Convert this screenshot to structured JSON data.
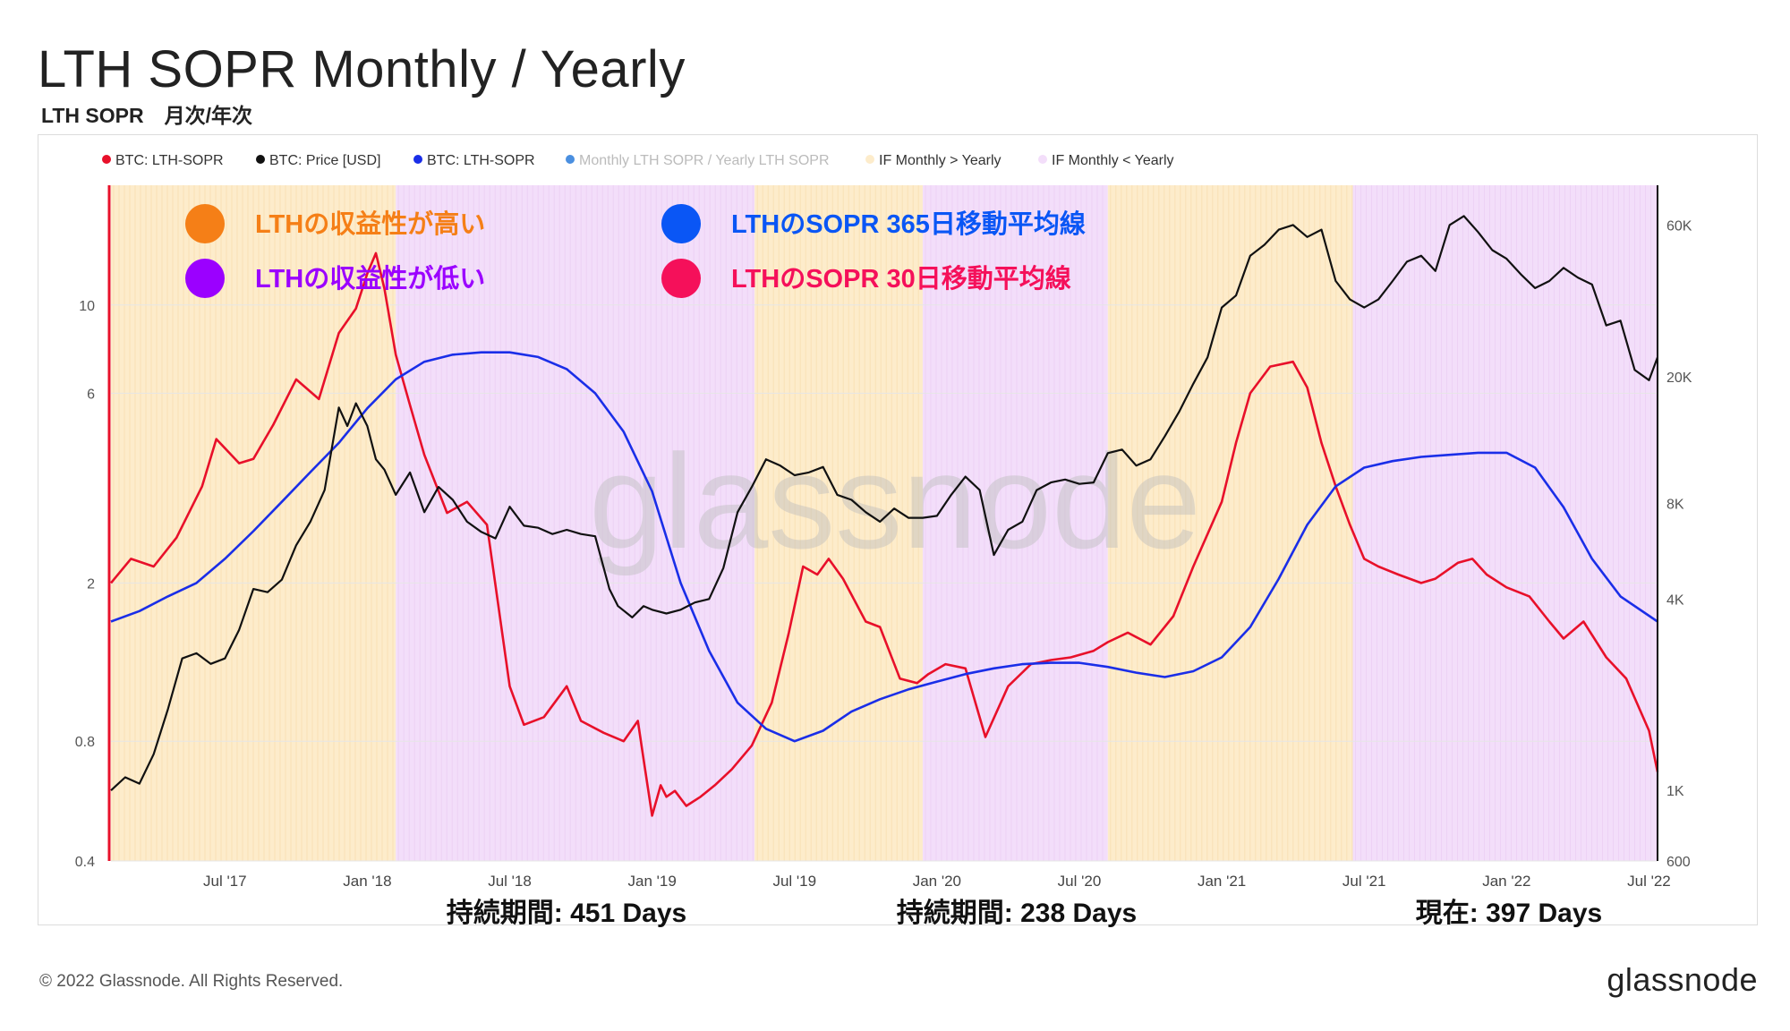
{
  "header": {
    "title": "LTH SOPR Monthly / Yearly",
    "subtitle": "LTH SOPR　月次/年次"
  },
  "footer": {
    "copyright": "© 2022 Glassnode. All Rights Reserved.",
    "brand": "glassnode"
  },
  "colors": {
    "red": "#e8102a",
    "black": "#111111",
    "blue": "#1a2ee8",
    "light_blue": "#4a8fe0",
    "band_high": "#fdeccb",
    "band_low": "#f3defa",
    "ann_orange": "#f57f17",
    "ann_purple": "#9b00ff",
    "ann_blue": "#0a56f5",
    "ann_pink": "#f5105a"
  },
  "chart_data": {
    "type": "line",
    "legend": [
      {
        "label": "BTC: LTH-SOPR",
        "color": "#e8102a"
      },
      {
        "label": "BTC: Price [USD]",
        "color": "#111111"
      },
      {
        "label": "BTC: LTH-SOPR",
        "color": "#1a2ee8"
      },
      {
        "label": "Monthly LTH SOPR / Yearly LTH SOPR",
        "color": "#4a8fe0",
        "muted": true
      },
      {
        "label": "IF Monthly > Yearly",
        "color": "#fdeccb"
      },
      {
        "label": "IF Monthly < Yearly",
        "color": "#f3defa"
      }
    ],
    "annotations": [
      {
        "label": "LTHの収益性が高い",
        "color": "#f57f17"
      },
      {
        "label": "LTHの収益性が低い",
        "color": "#9b00ff"
      },
      {
        "label": "LTHのSOPR 365日移動平均線",
        "color": "#0a56f5"
      },
      {
        "label": "LTHのSOPR 30日移動平均線",
        "color": "#f5105a"
      }
    ],
    "durations": [
      "持続期間: 451 Days",
      "持続期間: 238 Days",
      "現在: 397 Days"
    ],
    "x_ticks": [
      "Jul '17",
      "Jan '18",
      "Jul '18",
      "Jan '19",
      "Jul '19",
      "Jan '20",
      "Jul '20",
      "Jan '21",
      "Jul '21",
      "Jan '22",
      "Jul '22"
    ],
    "x_tick_dates": [
      2017.5,
      2018.0,
      2018.5,
      2019.0,
      2019.5,
      2020.0,
      2020.5,
      2021.0,
      2021.5,
      2022.0,
      2022.5
    ],
    "x_range": [
      2017.1,
      2022.53
    ],
    "y_left": {
      "label": "",
      "scale": "log",
      "ticks": [
        0.4,
        0.8,
        2,
        6,
        10
      ],
      "tick_labels": [
        "0.4",
        "0.8",
        "2",
        "6",
        "10"
      ],
      "range": [
        0.4,
        20
      ]
    },
    "y_right": {
      "label": "",
      "scale": "log",
      "ticks": [
        600,
        1000,
        4000,
        8000,
        20000,
        60000
      ],
      "tick_labels": [
        "600",
        "1K",
        "4K",
        "8K",
        "20K",
        "60K"
      ],
      "range": [
        600,
        80000
      ]
    },
    "bands": [
      {
        "start": 2017.1,
        "end": 2018.1,
        "state": "IF Monthly > Yearly"
      },
      {
        "start": 2018.1,
        "end": 2019.36,
        "state": "IF Monthly < Yearly"
      },
      {
        "start": 2019.36,
        "end": 2019.95,
        "state": "IF Monthly > Yearly"
      },
      {
        "start": 2019.95,
        "end": 2020.6,
        "state": "IF Monthly < Yearly"
      },
      {
        "start": 2020.6,
        "end": 2021.46,
        "state": "IF Monthly > Yearly"
      },
      {
        "start": 2021.46,
        "end": 2022.53,
        "state": "IF Monthly < Yearly"
      }
    ],
    "series": [
      {
        "name": "BTC: LTH-SOPR",
        "axis": "left",
        "color": "#e8102a",
        "x": [
          2017.1,
          2017.17,
          2017.25,
          2017.33,
          2017.42,
          2017.47,
          2017.55,
          2017.6,
          2017.67,
          2017.75,
          2017.83,
          2017.9,
          2017.96,
          2018.0,
          2018.03,
          2018.06,
          2018.1,
          2018.15,
          2018.2,
          2018.28,
          2018.35,
          2018.42,
          2018.5,
          2018.55,
          2018.62,
          2018.7,
          2018.75,
          2018.83,
          2018.9,
          2018.95,
          2018.97,
          2019.0,
          2019.03,
          2019.05,
          2019.08,
          2019.12,
          2019.17,
          2019.22,
          2019.28,
          2019.35,
          2019.42,
          2019.48,
          2019.53,
          2019.58,
          2019.62,
          2019.67,
          2019.75,
          2019.8,
          2019.87,
          2019.93,
          2019.97,
          2020.03,
          2020.1,
          2020.17,
          2020.25,
          2020.33,
          2020.4,
          2020.47,
          2020.55,
          2020.6,
          2020.67,
          2020.75,
          2020.83,
          2020.9,
          2021.0,
          2021.05,
          2021.1,
          2021.17,
          2021.25,
          2021.3,
          2021.35,
          2021.4,
          2021.45,
          2021.5,
          2021.55,
          2021.62,
          2021.7,
          2021.75,
          2021.83,
          2021.88,
          2021.93,
          2022.0,
          2022.08,
          2022.15,
          2022.2,
          2022.27,
          2022.35,
          2022.42,
          2022.5,
          2022.53
        ],
        "y": [
          2.0,
          2.3,
          2.2,
          2.6,
          3.5,
          4.6,
          4.0,
          4.1,
          5.0,
          6.5,
          5.8,
          8.5,
          9.8,
          12.0,
          13.5,
          11.0,
          7.5,
          5.6,
          4.2,
          3.0,
          3.2,
          2.8,
          1.1,
          0.88,
          0.92,
          1.1,
          0.9,
          0.84,
          0.8,
          0.9,
          0.72,
          0.52,
          0.62,
          0.58,
          0.6,
          0.55,
          0.58,
          0.62,
          0.68,
          0.78,
          1.0,
          1.5,
          2.2,
          2.1,
          2.3,
          2.05,
          1.6,
          1.55,
          1.15,
          1.12,
          1.18,
          1.25,
          1.22,
          0.82,
          1.1,
          1.25,
          1.28,
          1.3,
          1.35,
          1.42,
          1.5,
          1.4,
          1.65,
          2.2,
          3.2,
          4.5,
          6.0,
          7.0,
          7.2,
          6.2,
          4.5,
          3.5,
          2.8,
          2.3,
          2.2,
          2.1,
          2.0,
          2.05,
          2.25,
          2.3,
          2.1,
          1.95,
          1.85,
          1.6,
          1.45,
          1.6,
          1.3,
          1.15,
          0.85,
          0.67
        ]
      },
      {
        "name": "BTC: Price [USD]",
        "axis": "right",
        "color": "#111111",
        "x": [
          2017.1,
          2017.15,
          2017.2,
          2017.25,
          2017.3,
          2017.35,
          2017.4,
          2017.45,
          2017.5,
          2017.55,
          2017.6,
          2017.65,
          2017.7,
          2017.75,
          2017.8,
          2017.85,
          2017.9,
          2017.93,
          2017.96,
          2018.0,
          2018.03,
          2018.06,
          2018.1,
          2018.15,
          2018.2,
          2018.25,
          2018.3,
          2018.35,
          2018.4,
          2018.45,
          2018.5,
          2018.55,
          2018.6,
          2018.65,
          2018.7,
          2018.75,
          2018.8,
          2018.85,
          2018.88,
          2018.93,
          2018.97,
          2019.0,
          2019.05,
          2019.1,
          2019.15,
          2019.2,
          2019.25,
          2019.3,
          2019.35,
          2019.4,
          2019.45,
          2019.5,
          2019.55,
          2019.6,
          2019.65,
          2019.7,
          2019.75,
          2019.8,
          2019.85,
          2019.9,
          2019.95,
          2020.0,
          2020.05,
          2020.1,
          2020.15,
          2020.2,
          2020.25,
          2020.3,
          2020.35,
          2020.4,
          2020.45,
          2020.5,
          2020.55,
          2020.6,
          2020.65,
          2020.7,
          2020.75,
          2020.8,
          2020.85,
          2020.9,
          2020.95,
          2021.0,
          2021.05,
          2021.1,
          2021.15,
          2021.2,
          2021.25,
          2021.3,
          2021.35,
          2021.4,
          2021.45,
          2021.5,
          2021.55,
          2021.6,
          2021.65,
          2021.7,
          2021.75,
          2021.8,
          2021.85,
          2021.9,
          2021.95,
          2022.0,
          2022.05,
          2022.1,
          2022.15,
          2022.2,
          2022.25,
          2022.3,
          2022.35,
          2022.4,
          2022.45,
          2022.5,
          2022.53
        ],
        "y": [
          1000,
          1100,
          1050,
          1300,
          1800,
          2600,
          2700,
          2500,
          2600,
          3200,
          4300,
          4200,
          4600,
          5900,
          7000,
          8800,
          16000,
          14000,
          16500,
          14000,
          11000,
          10200,
          8500,
          10000,
          7500,
          9000,
          8200,
          7000,
          6500,
          6200,
          7800,
          6800,
          6700,
          6400,
          6600,
          6400,
          6300,
          4300,
          3800,
          3500,
          3800,
          3700,
          3600,
          3700,
          3900,
          4000,
          5000,
          7500,
          9000,
          11000,
          10500,
          9800,
          10000,
          10400,
          8500,
          8200,
          7500,
          7000,
          7700,
          7200,
          7200,
          7300,
          8500,
          9700,
          8800,
          5500,
          6600,
          7000,
          8800,
          9300,
          9500,
          9200,
          9300,
          11500,
          11800,
          10500,
          11000,
          13000,
          15500,
          19000,
          23000,
          33000,
          36000,
          48000,
          52000,
          58000,
          60000,
          55000,
          58000,
          40000,
          35000,
          33000,
          35000,
          40000,
          46000,
          48000,
          43000,
          60000,
          64000,
          57000,
          50000,
          47000,
          42000,
          38000,
          40000,
          44000,
          41000,
          39000,
          29000,
          30000,
          21000,
          19500,
          23000
        ]
      },
      {
        "name": "BTC: LTH-SOPR",
        "axis": "left",
        "color": "#1a2ee8",
        "x": [
          2017.1,
          2017.2,
          2017.3,
          2017.4,
          2017.5,
          2017.6,
          2017.7,
          2017.8,
          2017.9,
          2018.0,
          2018.1,
          2018.2,
          2018.3,
          2018.4,
          2018.5,
          2018.6,
          2018.7,
          2018.8,
          2018.9,
          2019.0,
          2019.1,
          2019.2,
          2019.3,
          2019.4,
          2019.5,
          2019.6,
          2019.7,
          2019.8,
          2019.9,
          2020.0,
          2020.1,
          2020.2,
          2020.3,
          2020.4,
          2020.5,
          2020.6,
          2020.7,
          2020.8,
          2020.9,
          2021.0,
          2021.1,
          2021.2,
          2021.3,
          2021.4,
          2021.5,
          2021.6,
          2021.7,
          2021.8,
          2021.9,
          2022.0,
          2022.1,
          2022.2,
          2022.3,
          2022.4,
          2022.53
        ],
        "y": [
          1.6,
          1.7,
          1.85,
          2.0,
          2.3,
          2.7,
          3.2,
          3.8,
          4.5,
          5.5,
          6.5,
          7.2,
          7.5,
          7.6,
          7.6,
          7.4,
          6.9,
          6.0,
          4.8,
          3.4,
          2.0,
          1.35,
          1.0,
          0.86,
          0.8,
          0.85,
          0.95,
          1.02,
          1.08,
          1.13,
          1.18,
          1.22,
          1.25,
          1.26,
          1.26,
          1.23,
          1.19,
          1.16,
          1.2,
          1.3,
          1.55,
          2.05,
          2.8,
          3.5,
          3.9,
          4.05,
          4.15,
          4.2,
          4.25,
          4.25,
          3.9,
          3.1,
          2.3,
          1.85,
          1.6
        ]
      }
    ]
  }
}
